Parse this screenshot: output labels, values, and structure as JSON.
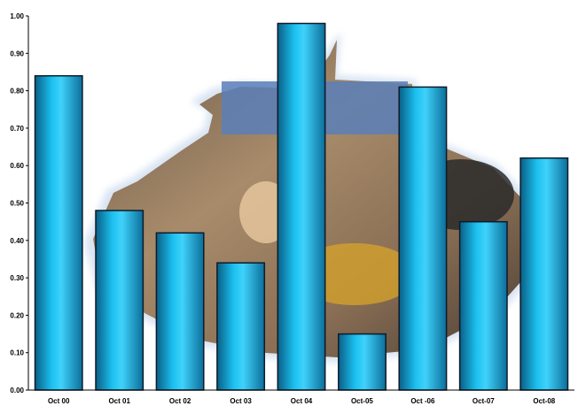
{
  "chart_data": {
    "type": "bar",
    "categories": [
      "Oct 00",
      "Oct 01",
      "Oct 02",
      "Oct 03",
      "Oct 04",
      "Oct-05",
      "Oct -06",
      "Oct-07",
      "Oct-08"
    ],
    "values": [
      0.84,
      0.48,
      0.42,
      0.34,
      0.98,
      0.15,
      0.81,
      0.45,
      0.62
    ],
    "yticks": [
      "0.00",
      "0.10",
      "0.20",
      "0.30",
      "0.40",
      "0.50",
      "0.60",
      "0.70",
      "0.80",
      "0.90",
      "1.00"
    ],
    "ylim": [
      0,
      1.0
    ],
    "grid": false,
    "legend": "none",
    "bar_color": "#16a9d6",
    "bar_edge": "#0d1b2a"
  }
}
